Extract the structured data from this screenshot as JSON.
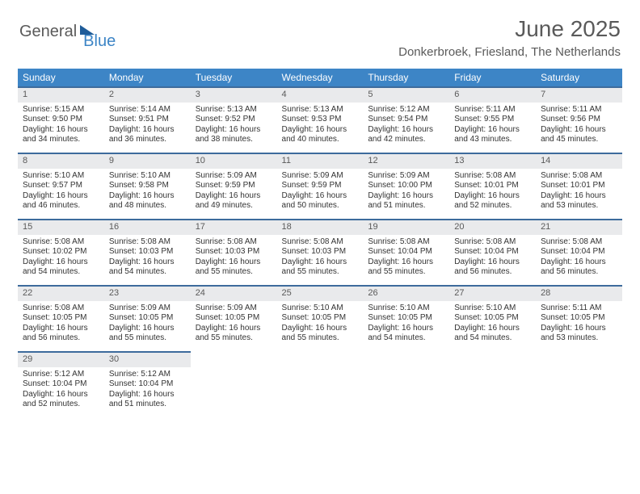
{
  "brand": {
    "part1": "General",
    "part2": "Blue"
  },
  "title": "June 2025",
  "location": "Donkerbroek, Friesland, The Netherlands",
  "weekday_headers": [
    "Sunday",
    "Monday",
    "Tuesday",
    "Wednesday",
    "Thursday",
    "Friday",
    "Saturday"
  ],
  "colors": {
    "header_bg": "#3d85c6",
    "header_text": "#ffffff",
    "daynum_bg": "#e9eaec",
    "daynum_border": "#3d6b9c",
    "body_text": "#333333",
    "title_text": "#5a5a5a"
  },
  "days": [
    {
      "n": 1,
      "sunrise": "5:15 AM",
      "sunset": "9:50 PM",
      "dl_h": 16,
      "dl_m": 34
    },
    {
      "n": 2,
      "sunrise": "5:14 AM",
      "sunset": "9:51 PM",
      "dl_h": 16,
      "dl_m": 36
    },
    {
      "n": 3,
      "sunrise": "5:13 AM",
      "sunset": "9:52 PM",
      "dl_h": 16,
      "dl_m": 38
    },
    {
      "n": 4,
      "sunrise": "5:13 AM",
      "sunset": "9:53 PM",
      "dl_h": 16,
      "dl_m": 40
    },
    {
      "n": 5,
      "sunrise": "5:12 AM",
      "sunset": "9:54 PM",
      "dl_h": 16,
      "dl_m": 42
    },
    {
      "n": 6,
      "sunrise": "5:11 AM",
      "sunset": "9:55 PM",
      "dl_h": 16,
      "dl_m": 43
    },
    {
      "n": 7,
      "sunrise": "5:11 AM",
      "sunset": "9:56 PM",
      "dl_h": 16,
      "dl_m": 45
    },
    {
      "n": 8,
      "sunrise": "5:10 AM",
      "sunset": "9:57 PM",
      "dl_h": 16,
      "dl_m": 46
    },
    {
      "n": 9,
      "sunrise": "5:10 AM",
      "sunset": "9:58 PM",
      "dl_h": 16,
      "dl_m": 48
    },
    {
      "n": 10,
      "sunrise": "5:09 AM",
      "sunset": "9:59 PM",
      "dl_h": 16,
      "dl_m": 49
    },
    {
      "n": 11,
      "sunrise": "5:09 AM",
      "sunset": "9:59 PM",
      "dl_h": 16,
      "dl_m": 50
    },
    {
      "n": 12,
      "sunrise": "5:09 AM",
      "sunset": "10:00 PM",
      "dl_h": 16,
      "dl_m": 51
    },
    {
      "n": 13,
      "sunrise": "5:08 AM",
      "sunset": "10:01 PM",
      "dl_h": 16,
      "dl_m": 52
    },
    {
      "n": 14,
      "sunrise": "5:08 AM",
      "sunset": "10:01 PM",
      "dl_h": 16,
      "dl_m": 53
    },
    {
      "n": 15,
      "sunrise": "5:08 AM",
      "sunset": "10:02 PM",
      "dl_h": 16,
      "dl_m": 54
    },
    {
      "n": 16,
      "sunrise": "5:08 AM",
      "sunset": "10:03 PM",
      "dl_h": 16,
      "dl_m": 54
    },
    {
      "n": 17,
      "sunrise": "5:08 AM",
      "sunset": "10:03 PM",
      "dl_h": 16,
      "dl_m": 55
    },
    {
      "n": 18,
      "sunrise": "5:08 AM",
      "sunset": "10:03 PM",
      "dl_h": 16,
      "dl_m": 55
    },
    {
      "n": 19,
      "sunrise": "5:08 AM",
      "sunset": "10:04 PM",
      "dl_h": 16,
      "dl_m": 55
    },
    {
      "n": 20,
      "sunrise": "5:08 AM",
      "sunset": "10:04 PM",
      "dl_h": 16,
      "dl_m": 56
    },
    {
      "n": 21,
      "sunrise": "5:08 AM",
      "sunset": "10:04 PM",
      "dl_h": 16,
      "dl_m": 56
    },
    {
      "n": 22,
      "sunrise": "5:08 AM",
      "sunset": "10:05 PM",
      "dl_h": 16,
      "dl_m": 56
    },
    {
      "n": 23,
      "sunrise": "5:09 AM",
      "sunset": "10:05 PM",
      "dl_h": 16,
      "dl_m": 55
    },
    {
      "n": 24,
      "sunrise": "5:09 AM",
      "sunset": "10:05 PM",
      "dl_h": 16,
      "dl_m": 55
    },
    {
      "n": 25,
      "sunrise": "5:10 AM",
      "sunset": "10:05 PM",
      "dl_h": 16,
      "dl_m": 55
    },
    {
      "n": 26,
      "sunrise": "5:10 AM",
      "sunset": "10:05 PM",
      "dl_h": 16,
      "dl_m": 54
    },
    {
      "n": 27,
      "sunrise": "5:10 AM",
      "sunset": "10:05 PM",
      "dl_h": 16,
      "dl_m": 54
    },
    {
      "n": 28,
      "sunrise": "5:11 AM",
      "sunset": "10:05 PM",
      "dl_h": 16,
      "dl_m": 53
    },
    {
      "n": 29,
      "sunrise": "5:12 AM",
      "sunset": "10:04 PM",
      "dl_h": 16,
      "dl_m": 52
    },
    {
      "n": 30,
      "sunrise": "5:12 AM",
      "sunset": "10:04 PM",
      "dl_h": 16,
      "dl_m": 51
    }
  ],
  "labels": {
    "sunrise": "Sunrise:",
    "sunset": "Sunset:",
    "daylight": "Daylight:",
    "hours_word": "hours",
    "and_word": "and",
    "minutes_word": "minutes."
  },
  "layout": {
    "first_weekday_index": 0,
    "total_cells": 35
  }
}
